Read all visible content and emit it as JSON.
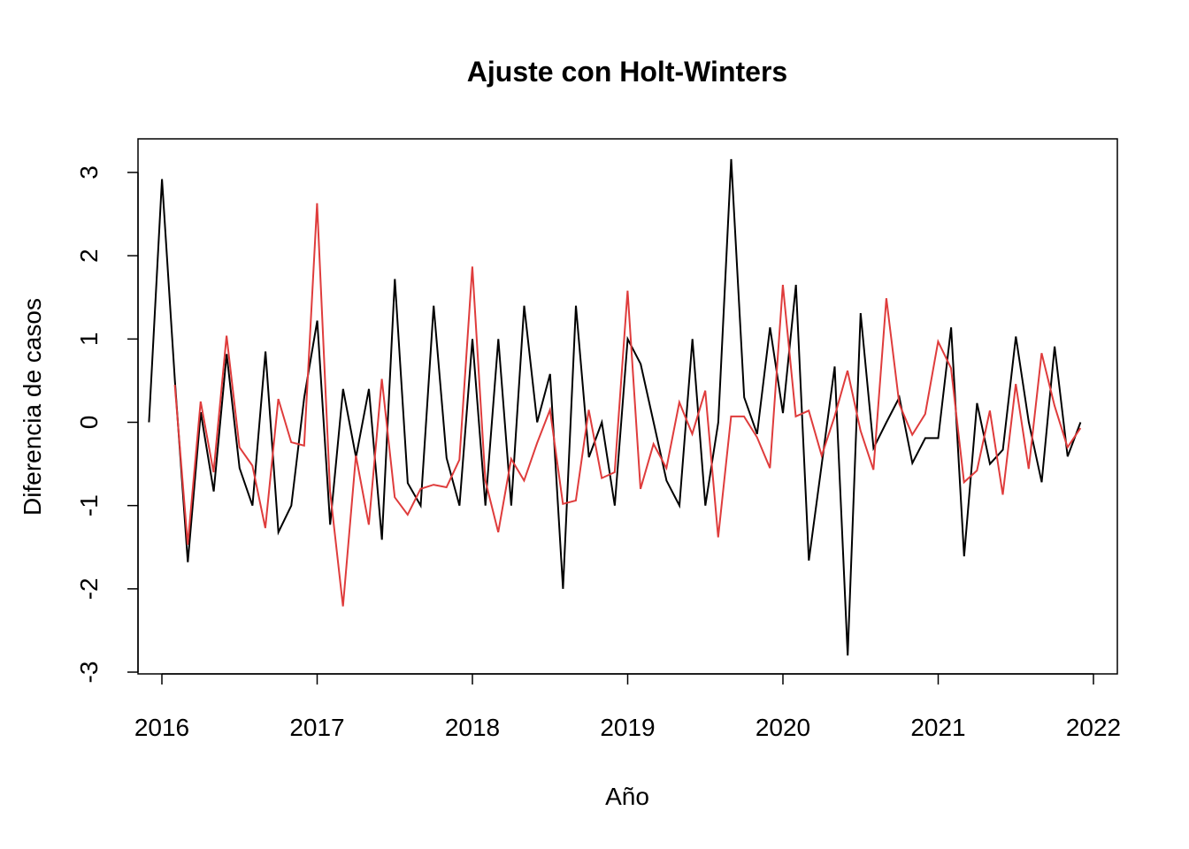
{
  "chart_data": {
    "type": "line",
    "title": "Ajuste con Holt-Winters",
    "xlabel": "Año",
    "ylabel": "Diferencia de casos",
    "xlim": [
      2015.85,
      2022.15
    ],
    "ylim": [
      -3,
      3
    ],
    "x_ticks": [
      2016,
      2017,
      2018,
      2019,
      2020,
      2021,
      2022
    ],
    "x_tick_labels": [
      "2016",
      "2017",
      "2018",
      "2019",
      "2020",
      "2021",
      "2022"
    ],
    "y_ticks": [
      -3,
      -2,
      -1,
      0,
      1,
      2,
      3
    ],
    "y_tick_labels": [
      "-3",
      "-2",
      "-1",
      "0",
      "1",
      "2",
      "3"
    ],
    "grid": false,
    "series": [
      {
        "color": "#000000",
        "x_start": 2015.917,
        "x_step": 0.08333,
        "values": [
          0,
          2.92,
          0.5,
          -1.68,
          0.12,
          -0.83,
          0.82,
          -0.55,
          -1.0,
          0.85,
          -1.32,
          -1.0,
          0.3,
          1.22,
          -1.23,
          0.4,
          -0.42,
          0.4,
          -1.41,
          1.72,
          -0.73,
          -1.0,
          1.4,
          -0.43,
          -1.0,
          1.0,
          -1.0,
          1.0,
          -1.0,
          1.4,
          0.0,
          0.58,
          -2.0,
          1.4,
          -0.42,
          0.0,
          -1.0,
          1.0,
          0.7,
          0.0,
          -0.7,
          -1.0,
          1.0,
          -1.0,
          0.0,
          3.16,
          0.3,
          -0.14,
          1.14,
          0.11,
          1.65,
          -1.66,
          -0.5,
          0.67,
          -2.8,
          1.31,
          -0.31,
          0.0,
          0.3,
          -0.49,
          -0.19,
          -0.19,
          1.14,
          -1.61,
          0.23,
          -0.5,
          -0.33,
          1.03,
          0.0,
          -0.72,
          0.91,
          -0.41,
          0.0
        ]
      },
      {
        "color": "#DF3C3C",
        "x_start": 2016.083,
        "x_step": 0.08333,
        "values": [
          0.45,
          -1.47,
          0.25,
          -0.6,
          1.04,
          -0.3,
          -0.52,
          -1.27,
          0.28,
          -0.24,
          -0.28,
          2.63,
          -0.83,
          -2.21,
          -0.4,
          -1.23,
          0.52,
          -0.9,
          -1.11,
          -0.8,
          -0.75,
          -0.78,
          -0.45,
          1.87,
          -0.7,
          -1.32,
          -0.44,
          -0.7,
          -0.25,
          0.15,
          -0.98,
          -0.94,
          0.15,
          -0.67,
          -0.6,
          1.58,
          -0.8,
          -0.26,
          -0.55,
          0.24,
          -0.14,
          0.38,
          -1.38,
          0.07,
          0.07,
          -0.18,
          -0.55,
          1.65,
          0.07,
          0.14,
          -0.4,
          0.07,
          0.62,
          -0.1,
          -0.57,
          1.49,
          0.22,
          -0.15,
          0.1,
          0.97,
          0.65,
          -0.72,
          -0.58,
          0.14,
          -0.87,
          0.46,
          -0.56,
          0.83,
          0.2,
          -0.3,
          -0.07
        ]
      }
    ]
  }
}
